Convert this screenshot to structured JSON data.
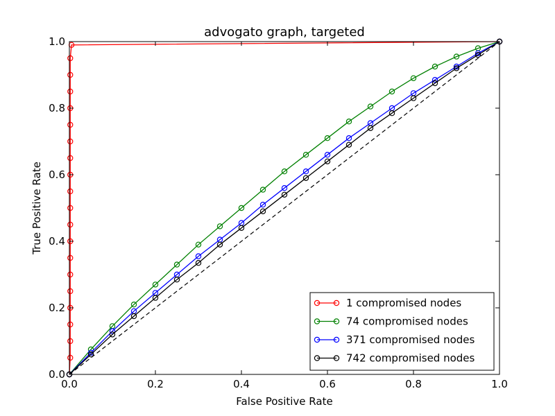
{
  "chart_data": {
    "type": "line",
    "title": "advogato graph, targeted",
    "xlabel": "False Positive Rate",
    "ylabel": "True Positive Rate",
    "xlim": [
      0.0,
      1.0
    ],
    "ylim": [
      0.0,
      1.0
    ],
    "xticks": [
      "0.0",
      "0.2",
      "0.4",
      "0.6",
      "0.8",
      "1.0"
    ],
    "yticks": [
      "0.0",
      "0.2",
      "0.4",
      "0.6",
      "0.8",
      "1.0"
    ],
    "grid": false,
    "legend_position": "lower-right",
    "reference_line": {
      "style": "dashed",
      "color": "#000000",
      "points": [
        [
          0,
          0
        ],
        [
          1,
          1
        ]
      ]
    },
    "series": [
      {
        "name": "1 compromised nodes",
        "color": "#ff0000",
        "marker": "open-circle",
        "points": [
          [
            0.0,
            0.0
          ],
          [
            0.002,
            0.05
          ],
          [
            0.002,
            0.1
          ],
          [
            0.002,
            0.15
          ],
          [
            0.002,
            0.2
          ],
          [
            0.002,
            0.25
          ],
          [
            0.002,
            0.3
          ],
          [
            0.002,
            0.35
          ],
          [
            0.002,
            0.4
          ],
          [
            0.002,
            0.45
          ],
          [
            0.002,
            0.5
          ],
          [
            0.002,
            0.55
          ],
          [
            0.002,
            0.6
          ],
          [
            0.002,
            0.65
          ],
          [
            0.002,
            0.7
          ],
          [
            0.002,
            0.75
          ],
          [
            0.002,
            0.8
          ],
          [
            0.002,
            0.85
          ],
          [
            0.002,
            0.9
          ],
          [
            0.002,
            0.95
          ],
          [
            0.005,
            0.99
          ],
          [
            1.0,
            1.0
          ]
        ]
      },
      {
        "name": "74 compromised nodes",
        "color": "#008000",
        "marker": "open-circle",
        "points": [
          [
            0.0,
            0.0
          ],
          [
            0.05,
            0.075
          ],
          [
            0.1,
            0.145
          ],
          [
            0.15,
            0.21
          ],
          [
            0.2,
            0.27
          ],
          [
            0.25,
            0.33
          ],
          [
            0.3,
            0.39
          ],
          [
            0.35,
            0.445
          ],
          [
            0.4,
            0.5
          ],
          [
            0.45,
            0.555
          ],
          [
            0.5,
            0.61
          ],
          [
            0.55,
            0.66
          ],
          [
            0.6,
            0.71
          ],
          [
            0.65,
            0.76
          ],
          [
            0.7,
            0.805
          ],
          [
            0.75,
            0.85
          ],
          [
            0.8,
            0.89
          ],
          [
            0.85,
            0.925
          ],
          [
            0.9,
            0.955
          ],
          [
            0.95,
            0.98
          ],
          [
            1.0,
            1.0
          ]
        ]
      },
      {
        "name": "371 compromised nodes",
        "color": "#0000ff",
        "marker": "open-circle",
        "points": [
          [
            0.0,
            0.0
          ],
          [
            0.05,
            0.065
          ],
          [
            0.1,
            0.13
          ],
          [
            0.15,
            0.19
          ],
          [
            0.2,
            0.245
          ],
          [
            0.25,
            0.3
          ],
          [
            0.3,
            0.355
          ],
          [
            0.35,
            0.405
          ],
          [
            0.4,
            0.455
          ],
          [
            0.45,
            0.51
          ],
          [
            0.5,
            0.56
          ],
          [
            0.55,
            0.61
          ],
          [
            0.6,
            0.66
          ],
          [
            0.65,
            0.71
          ],
          [
            0.7,
            0.755
          ],
          [
            0.75,
            0.8
          ],
          [
            0.8,
            0.845
          ],
          [
            0.85,
            0.885
          ],
          [
            0.9,
            0.925
          ],
          [
            0.95,
            0.965
          ],
          [
            1.0,
            1.0
          ]
        ]
      },
      {
        "name": "742 compromised nodes",
        "color": "#000000",
        "marker": "open-circle",
        "points": [
          [
            0.0,
            0.0
          ],
          [
            0.05,
            0.06
          ],
          [
            0.1,
            0.12
          ],
          [
            0.15,
            0.175
          ],
          [
            0.2,
            0.23
          ],
          [
            0.25,
            0.285
          ],
          [
            0.3,
            0.335
          ],
          [
            0.35,
            0.39
          ],
          [
            0.4,
            0.44
          ],
          [
            0.45,
            0.49
          ],
          [
            0.5,
            0.54
          ],
          [
            0.55,
            0.59
          ],
          [
            0.6,
            0.64
          ],
          [
            0.65,
            0.69
          ],
          [
            0.7,
            0.74
          ],
          [
            0.75,
            0.785
          ],
          [
            0.8,
            0.83
          ],
          [
            0.85,
            0.875
          ],
          [
            0.9,
            0.92
          ],
          [
            0.95,
            0.96
          ],
          [
            1.0,
            1.0
          ]
        ]
      }
    ]
  }
}
